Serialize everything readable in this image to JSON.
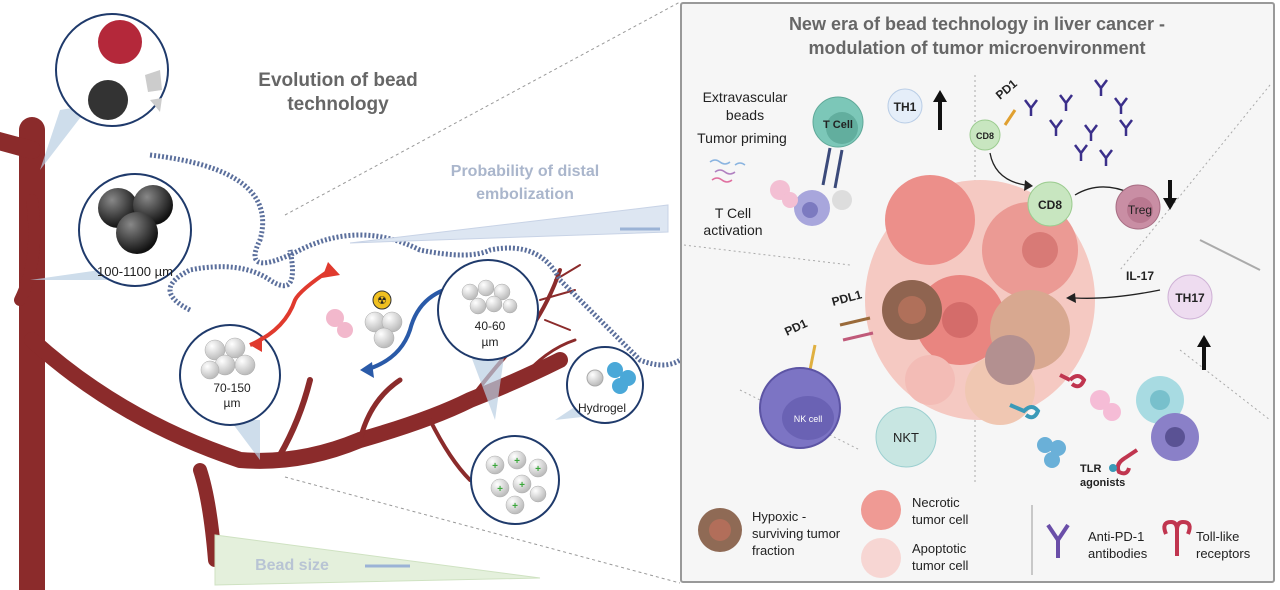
{
  "left": {
    "title_line1": "Evolution of bead",
    "title_line2": "technology",
    "distal_line1": "Probability of distal",
    "distal_line2": "embolization",
    "bead_size": "Bead size",
    "size_large": "100-1100 µm",
    "size_mid_1": "70-150",
    "size_mid_2": "µm",
    "size_small_1": "40-60",
    "size_small_2": "µm",
    "hydrogel": "Hydrogel"
  },
  "right": {
    "title_line1": "New era of  bead technology in liver cancer -",
    "title_line2": "modulation of tumor microenvironment",
    "extravascular_1": "Extravascular",
    "extravascular_2": "beads",
    "tumor_priming": "Tumor priming",
    "tcell_act_1": "T Cell",
    "tcell_act_2": "activation",
    "t_cell": "T Cell",
    "th1": "TH1",
    "pd1_top": "PD1",
    "cd8_a": "CD8",
    "cd8_b": "CD8",
    "treg": "Treg",
    "il17": "IL-17",
    "th17": "TH17",
    "pdl1": "PDL1",
    "pd1_nk": "PD1",
    "nk_cell": "NK cell",
    "nkt": "NKT",
    "tlr_1": "TLR",
    "tlr_2": "agonists"
  },
  "legend": {
    "hypoxic_1": "Hypoxic -",
    "hypoxic_2": "surviving tumor",
    "hypoxic_3": "fraction",
    "necrotic_1": "Necrotic",
    "necrotic_2": "tumor cell",
    "apoptotic_1": "Apoptotic",
    "apoptotic_2": "tumor cell",
    "antipd1_1": "Anti-PD-1",
    "antipd1_2": "antibodies",
    "tlr_1": "Toll-like",
    "tlr_2": "receptors"
  },
  "colors": {
    "vessel": "#8b2b2b",
    "panel_border": "#999999",
    "title_gray": "#666666",
    "red_arrow": "#e03a2e",
    "blue_arrow": "#2a5aa8",
    "tcell": "#7cc7b8",
    "cd8": "#c8e6c0",
    "treg": "#c07a90",
    "nk": "#6e66b8",
    "antibody": "#3b2f8a",
    "tlr": "#c0354f"
  }
}
